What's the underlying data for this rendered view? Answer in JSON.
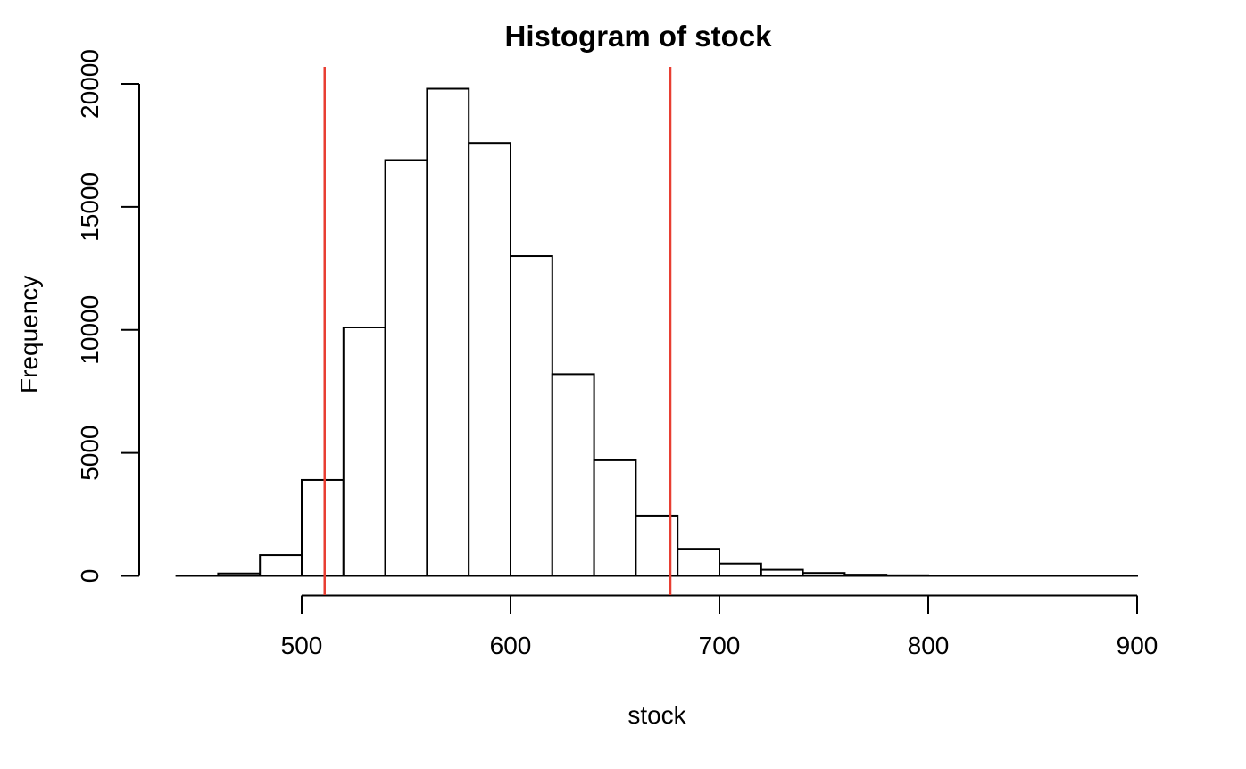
{
  "page": {
    "background": "#ffffff",
    "text_color": "#000000"
  },
  "chart_data": {
    "type": "bar",
    "subtype": "histogram",
    "title": "Histogram of stock",
    "xlabel": "stock",
    "ylabel": "Frequency",
    "xlim": [
      440,
      900
    ],
    "ylim": [
      0,
      20000
    ],
    "grid": false,
    "legend": "none",
    "bin_width": 20,
    "breaks": [
      440,
      460,
      480,
      500,
      520,
      540,
      560,
      580,
      600,
      620,
      640,
      660,
      680,
      700,
      720,
      740,
      760,
      780,
      800,
      820,
      840,
      860,
      880,
      900
    ],
    "counts": [
      15,
      100,
      850,
      3900,
      10100,
      16900,
      19800,
      17600,
      13000,
      8200,
      4700,
      2450,
      1100,
      500,
      250,
      120,
      50,
      25,
      15,
      10,
      6,
      4,
      2
    ],
    "x_ticks": [
      500,
      600,
      700,
      800,
      900
    ],
    "y_ticks": [
      0,
      5000,
      10000,
      15000,
      20000
    ],
    "bar_fill": "#ffffff",
    "bar_stroke": "#000000",
    "axis_color": "#000000",
    "reference_lines": [
      {
        "x": 511,
        "orientation": "vertical",
        "color": "#E83E32"
      },
      {
        "x": 676.5,
        "orientation": "vertical",
        "color": "#E83E32"
      }
    ]
  }
}
